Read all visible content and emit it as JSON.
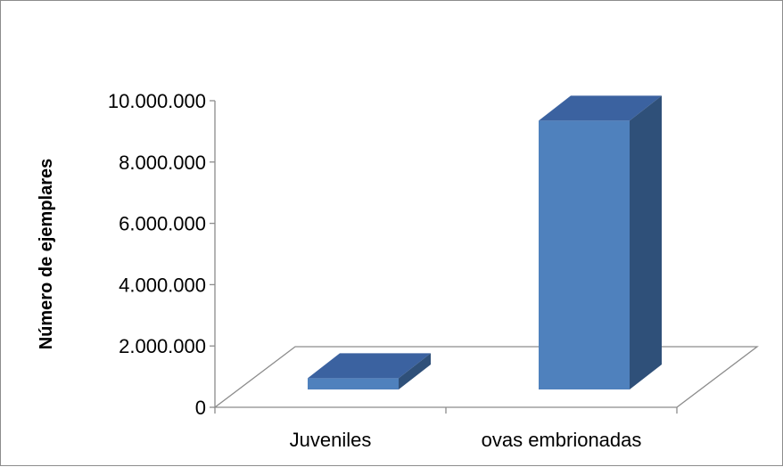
{
  "chart_data": {
    "type": "bar",
    "style": "3d-column",
    "categories": [
      "Juveniles",
      "ovas embrionadas"
    ],
    "values": [
      600000,
      9000000
    ],
    "xlabel": "",
    "ylabel": "Número de ejemplares",
    "ylim": [
      0,
      10000000
    ],
    "yticks": [
      {
        "value": 0,
        "label": "0"
      },
      {
        "value": 2000000,
        "label": "2.000.000"
      },
      {
        "value": 4000000,
        "label": "4.000.000"
      },
      {
        "value": 6000000,
        "label": "6.000.000"
      },
      {
        "value": 8000000,
        "label": "8.000.000"
      },
      {
        "value": 10000000,
        "label": "10.000.000"
      }
    ],
    "colors": {
      "bar_front": "#4f81bd",
      "bar_top": "#3b62a0",
      "bar_side": "#2f5079",
      "axis": "#8c8c8c"
    },
    "grid": false,
    "legend": "none"
  }
}
